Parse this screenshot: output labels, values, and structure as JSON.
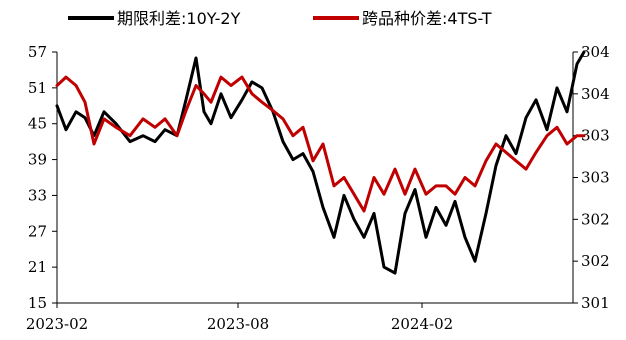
{
  "chart_data": {
    "type": "line",
    "legend_position": "top",
    "grid": false,
    "x_ticks": [
      "2023-02",
      "2023-08",
      "2024-02"
    ],
    "x_range": [
      "2023-02",
      "2024-07"
    ],
    "y_left": {
      "ticks": [
        "15",
        "21",
        "27",
        "33",
        "39",
        "45",
        "51",
        "57"
      ],
      "range": [
        15,
        57
      ]
    },
    "y_right": {
      "ticks": [
        "301",
        "302",
        "302",
        "303",
        "303",
        "304",
        "304"
      ],
      "range": [
        301.0,
        304.0
      ]
    },
    "series": [
      {
        "name": "期限利差:10Y-2Y",
        "color": "#000000",
        "axis": "left",
        "points": [
          [
            "2023-02-01",
            48
          ],
          [
            "2023-02-10",
            44
          ],
          [
            "2023-02-20",
            47
          ],
          [
            "2023-03-01",
            46
          ],
          [
            "2023-03-10",
            43
          ],
          [
            "2023-03-20",
            47
          ],
          [
            "2023-04-01",
            45
          ],
          [
            "2023-04-15",
            42
          ],
          [
            "2023-04-28",
            43
          ],
          [
            "2023-05-10",
            42
          ],
          [
            "2023-05-20",
            44
          ],
          [
            "2023-06-01",
            43
          ],
          [
            "2023-06-10",
            49
          ],
          [
            "2023-06-20",
            56
          ],
          [
            "2023-06-28",
            47
          ],
          [
            "2023-07-05",
            45
          ],
          [
            "2023-07-15",
            50
          ],
          [
            "2023-07-25",
            46
          ],
          [
            "2023-08-05",
            49
          ],
          [
            "2023-08-15",
            52
          ],
          [
            "2023-08-25",
            51
          ],
          [
            "2023-09-05",
            47
          ],
          [
            "2023-09-15",
            42
          ],
          [
            "2023-09-25",
            39
          ],
          [
            "2023-10-05",
            40
          ],
          [
            "2023-10-15",
            37
          ],
          [
            "2023-10-25",
            31
          ],
          [
            "2023-11-05",
            26
          ],
          [
            "2023-11-15",
            33
          ],
          [
            "2023-11-25",
            29
          ],
          [
            "2023-12-05",
            26
          ],
          [
            "2023-12-15",
            30
          ],
          [
            "2023-12-25",
            21
          ],
          [
            "2024-01-05",
            20
          ],
          [
            "2024-01-15",
            30
          ],
          [
            "2024-01-25",
            34
          ],
          [
            "2024-02-05",
            26
          ],
          [
            "2024-02-15",
            31
          ],
          [
            "2024-02-25",
            28
          ],
          [
            "2024-03-05",
            32
          ],
          [
            "2024-03-15",
            26
          ],
          [
            "2024-03-25",
            22
          ],
          [
            "2024-04-05",
            30
          ],
          [
            "2024-04-15",
            38
          ],
          [
            "2024-04-25",
            43
          ],
          [
            "2024-05-05",
            40
          ],
          [
            "2024-05-15",
            46
          ],
          [
            "2024-05-25",
            49
          ],
          [
            "2024-06-05",
            44
          ],
          [
            "2024-06-15",
            51
          ],
          [
            "2024-06-25",
            47
          ],
          [
            "2024-07-05",
            55
          ],
          [
            "2024-07-12",
            57
          ]
        ]
      },
      {
        "name": "跨品种价差:4TS-T",
        "color": "#c00000",
        "axis": "right",
        "points": [
          [
            "2023-02-01",
            303.6
          ],
          [
            "2023-02-10",
            303.7
          ],
          [
            "2023-02-20",
            303.6
          ],
          [
            "2023-03-01",
            303.4
          ],
          [
            "2023-03-10",
            302.9
          ],
          [
            "2023-03-20",
            303.2
          ],
          [
            "2023-04-01",
            303.1
          ],
          [
            "2023-04-15",
            303.0
          ],
          [
            "2023-04-28",
            303.2
          ],
          [
            "2023-05-10",
            303.1
          ],
          [
            "2023-05-20",
            303.2
          ],
          [
            "2023-06-01",
            303.0
          ],
          [
            "2023-06-10",
            303.3
          ],
          [
            "2023-06-20",
            303.6
          ],
          [
            "2023-06-28",
            303.5
          ],
          [
            "2023-07-05",
            303.4
          ],
          [
            "2023-07-15",
            303.7
          ],
          [
            "2023-07-25",
            303.6
          ],
          [
            "2023-08-05",
            303.7
          ],
          [
            "2023-08-15",
            303.5
          ],
          [
            "2023-08-25",
            303.4
          ],
          [
            "2023-09-05",
            303.3
          ],
          [
            "2023-09-15",
            303.2
          ],
          [
            "2023-09-25",
            303.0
          ],
          [
            "2023-10-05",
            303.1
          ],
          [
            "2023-10-15",
            302.7
          ],
          [
            "2023-10-25",
            302.9
          ],
          [
            "2023-11-05",
            302.4
          ],
          [
            "2023-11-15",
            302.5
          ],
          [
            "2023-11-25",
            302.3
          ],
          [
            "2023-12-05",
            302.1
          ],
          [
            "2023-12-15",
            302.5
          ],
          [
            "2023-12-25",
            302.3
          ],
          [
            "2024-01-05",
            302.6
          ],
          [
            "2024-01-15",
            302.3
          ],
          [
            "2024-01-25",
            302.6
          ],
          [
            "2024-02-05",
            302.3
          ],
          [
            "2024-02-15",
            302.4
          ],
          [
            "2024-02-25",
            302.4
          ],
          [
            "2024-03-05",
            302.3
          ],
          [
            "2024-03-15",
            302.5
          ],
          [
            "2024-03-25",
            302.4
          ],
          [
            "2024-04-05",
            302.7
          ],
          [
            "2024-04-15",
            302.9
          ],
          [
            "2024-04-25",
            302.8
          ],
          [
            "2024-05-05",
            302.7
          ],
          [
            "2024-05-15",
            302.6
          ],
          [
            "2024-05-25",
            302.8
          ],
          [
            "2024-06-05",
            303.0
          ],
          [
            "2024-06-15",
            303.1
          ],
          [
            "2024-06-25",
            302.9
          ],
          [
            "2024-07-05",
            303.0
          ],
          [
            "2024-07-12",
            303.0
          ]
        ]
      }
    ]
  }
}
